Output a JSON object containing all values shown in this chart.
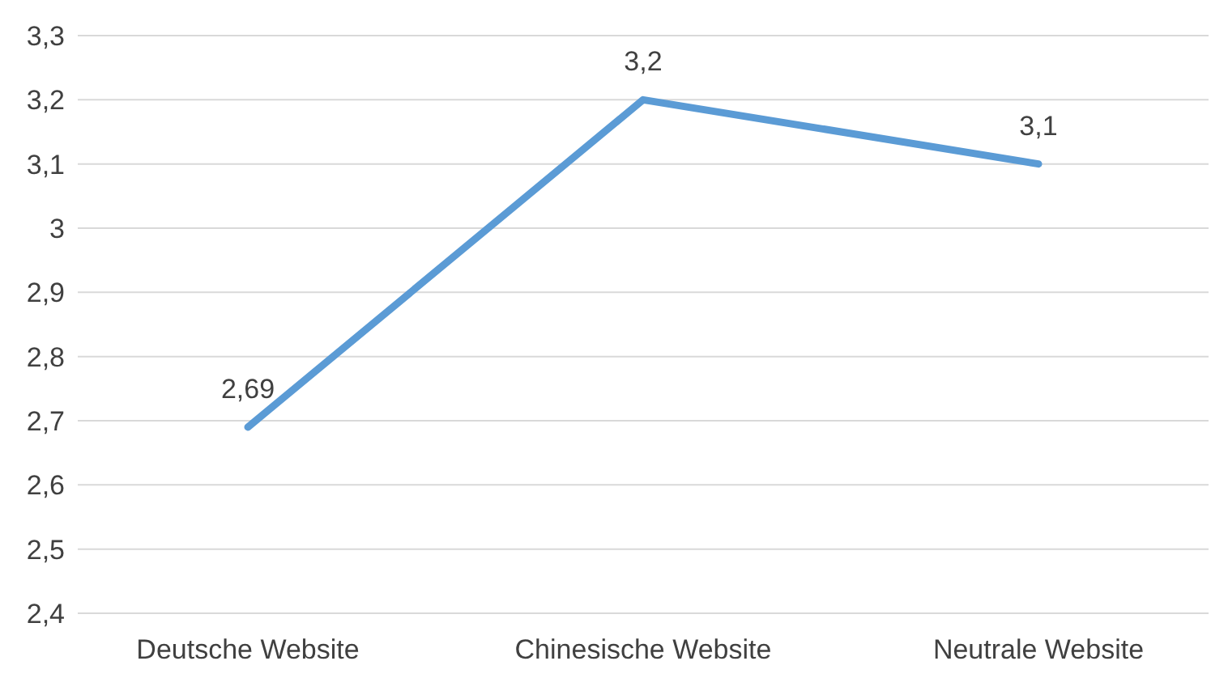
{
  "chart_data": {
    "type": "line",
    "categories": [
      "Deutsche Website",
      "Chinesische Website",
      "Neutrale Website"
    ],
    "series": [
      {
        "color": "#5b9bd5",
        "values": [
          2.69,
          3.2,
          3.1
        ],
        "value_labels": [
          "2,69",
          "3,2",
          "3,1"
        ]
      }
    ],
    "ylim": [
      2.4,
      3.3
    ],
    "yticks": [
      {
        "value": 2.4,
        "label": "2,4"
      },
      {
        "value": 2.5,
        "label": "2,5"
      },
      {
        "value": 2.6,
        "label": "2,6"
      },
      {
        "value": 2.7,
        "label": "2,7"
      },
      {
        "value": 2.8,
        "label": "2,8"
      },
      {
        "value": 2.9,
        "label": "2,9"
      },
      3,
      {
        "value": 3.1,
        "label": "3,1"
      },
      {
        "value": 3.2,
        "label": "3,2"
      },
      {
        "value": 3.3,
        "label": "3,3"
      }
    ],
    "grid": "y",
    "legend": false,
    "marker": "none",
    "line_style": "solid"
  }
}
